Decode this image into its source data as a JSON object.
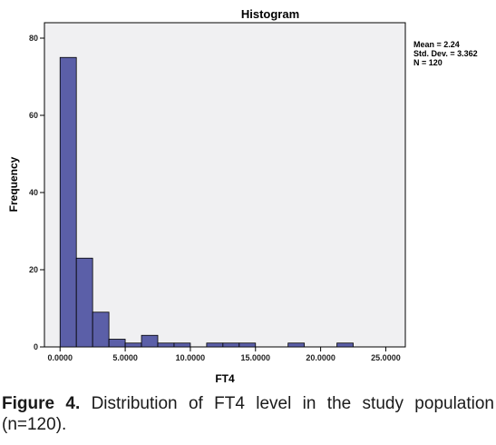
{
  "chart_data": {
    "type": "bar",
    "title": "Histogram",
    "xlabel": "FT4",
    "ylabel": "Frequency",
    "xlim": [
      -1.2,
      26.5
    ],
    "ylim": [
      0,
      84
    ],
    "x_ticks": [
      0,
      5,
      10,
      15,
      20,
      25
    ],
    "x_tick_labels": [
      "0.0000",
      "5.0000",
      "10.0000",
      "15.0000",
      "20.0000",
      "25.0000"
    ],
    "y_ticks": [
      0,
      20,
      40,
      60,
      80
    ],
    "y_tick_labels": [
      "0",
      "20",
      "40",
      "60",
      "80"
    ],
    "bin_width": 1.25,
    "bins": [
      {
        "start": 0.0,
        "value": 75
      },
      {
        "start": 1.25,
        "value": 23
      },
      {
        "start": 2.5,
        "value": 9
      },
      {
        "start": 3.75,
        "value": 2
      },
      {
        "start": 5.0,
        "value": 1
      },
      {
        "start": 6.25,
        "value": 3
      },
      {
        "start": 7.5,
        "value": 1
      },
      {
        "start": 8.75,
        "value": 1
      },
      {
        "start": 11.25,
        "value": 1
      },
      {
        "start": 12.5,
        "value": 1
      },
      {
        "start": 13.75,
        "value": 1
      },
      {
        "start": 17.5,
        "value": 1
      },
      {
        "start": 21.25,
        "value": 1
      }
    ],
    "stats": [
      "Mean = 2.24",
      "Std. Dev. = 3.362",
      "N = 120"
    ],
    "grid": false,
    "bar_color": "#5b5fa8",
    "plot_background": "#f0f0f2"
  },
  "caption": {
    "label": "Figure 4.",
    "text": " Distribution of FT4 level in the study population (n=120)."
  }
}
